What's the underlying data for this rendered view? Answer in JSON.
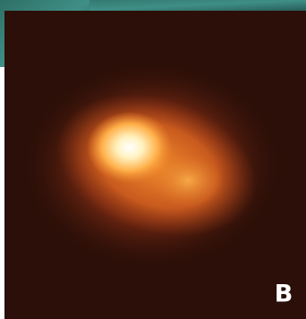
{
  "panel": {
    "label": "B"
  }
}
